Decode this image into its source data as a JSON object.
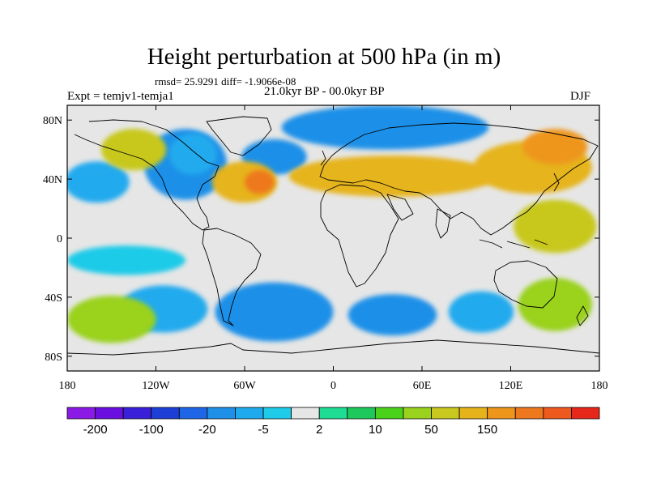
{
  "title": "Height perturbation at 500 hPa (in m)",
  "stats": "rmsd= 25.9291 diff= -1.9066e-08",
  "experiment": "Expt = temjv1-temja1",
  "period": "21.0kyr BP - 00.0kyr BP",
  "season": "DJF",
  "map": {
    "projection": "cylindrical-equidistant",
    "lon_range": [
      -180,
      180
    ],
    "lat_range": [
      -90,
      90
    ],
    "lon_ticks": [
      {
        "value": -180,
        "label": "180"
      },
      {
        "value": -120,
        "label": "120W"
      },
      {
        "value": -60,
        "label": "60W"
      },
      {
        "value": 0,
        "label": "0"
      },
      {
        "value": 60,
        "label": "60E"
      },
      {
        "value": 120,
        "label": "120E"
      },
      {
        "value": 180,
        "label": "180"
      }
    ],
    "lat_ticks": [
      {
        "value": 80,
        "label": "80N"
      },
      {
        "value": 40,
        "label": "40N"
      },
      {
        "value": 0,
        "label": "0"
      },
      {
        "value": -40,
        "label": "40S"
      },
      {
        "value": -80,
        "label": "80S"
      }
    ],
    "anomaly_regions": [
      {
        "lon": -160,
        "lat": 38,
        "rlon": 22,
        "rlat": 14,
        "level": 6
      },
      {
        "lon": -100,
        "lat": 50,
        "rlon": 28,
        "rlat": 24,
        "level": 5
      },
      {
        "lon": -95,
        "lat": 57,
        "rlon": 16,
        "rlat": 14,
        "level": 6
      },
      {
        "lon": -40,
        "lat": 55,
        "rlon": 22,
        "rlat": 12,
        "level": 5
      },
      {
        "lon": 35,
        "lat": 75,
        "rlon": 70,
        "rlat": 15,
        "level": 5
      },
      {
        "lon": -60,
        "lat": 38,
        "rlon": 22,
        "rlat": 14,
        "level": 14
      },
      {
        "lon": -50,
        "lat": 38,
        "rlon": 10,
        "rlat": 8,
        "level": 16
      },
      {
        "lon": 40,
        "lat": 42,
        "rlon": 70,
        "rlat": 14,
        "level": 14
      },
      {
        "lon": 135,
        "lat": 48,
        "rlon": 40,
        "rlat": 18,
        "level": 14
      },
      {
        "lon": 150,
        "lat": 62,
        "rlon": 22,
        "rlat": 12,
        "level": 15
      },
      {
        "lon": -135,
        "lat": 60,
        "rlon": 22,
        "rlat": 14,
        "level": 13
      },
      {
        "lon": -40,
        "lat": -50,
        "rlon": 40,
        "rlat": 20,
        "level": 5
      },
      {
        "lon": 40,
        "lat": -52,
        "rlon": 30,
        "rlat": 14,
        "level": 5
      },
      {
        "lon": -115,
        "lat": -48,
        "rlon": 30,
        "rlat": 16,
        "level": 6
      },
      {
        "lon": 100,
        "lat": -50,
        "rlon": 22,
        "rlat": 14,
        "level": 6
      },
      {
        "lon": 150,
        "lat": -45,
        "rlon": 25,
        "rlat": 18,
        "level": 12
      },
      {
        "lon": -150,
        "lat": -55,
        "rlon": 30,
        "rlat": 16,
        "level": 12
      },
      {
        "lon": 150,
        "lat": 8,
        "rlon": 28,
        "rlat": 18,
        "level": 13
      },
      {
        "lon": -140,
        "lat": -15,
        "rlon": 40,
        "rlat": 10,
        "level": 7
      }
    ]
  },
  "colorbar": {
    "colors": [
      "#8b1ae6",
      "#6a0fe0",
      "#3a20d8",
      "#1e3fd6",
      "#1e66e6",
      "#1e90e8",
      "#20aaee",
      "#1ecbe8",
      "#e6e6e6",
      "#1edc94",
      "#1ec85a",
      "#4ad21a",
      "#9ad21e",
      "#c8c81e",
      "#e6b41a",
      "#ee961a",
      "#ee781e",
      "#ee5a1e",
      "#e6281a"
    ],
    "neutral_index": 8,
    "labels": [
      {
        "boundary": 1,
        "text": "-200"
      },
      {
        "boundary": 3,
        "text": "-100"
      },
      {
        "boundary": 5,
        "text": "-20"
      },
      {
        "boundary": 7,
        "text": "-5"
      },
      {
        "boundary": 9,
        "text": "2"
      },
      {
        "boundary": 11,
        "text": "10"
      },
      {
        "boundary": 13,
        "text": "50"
      },
      {
        "boundary": 15,
        "text": "150"
      }
    ]
  }
}
